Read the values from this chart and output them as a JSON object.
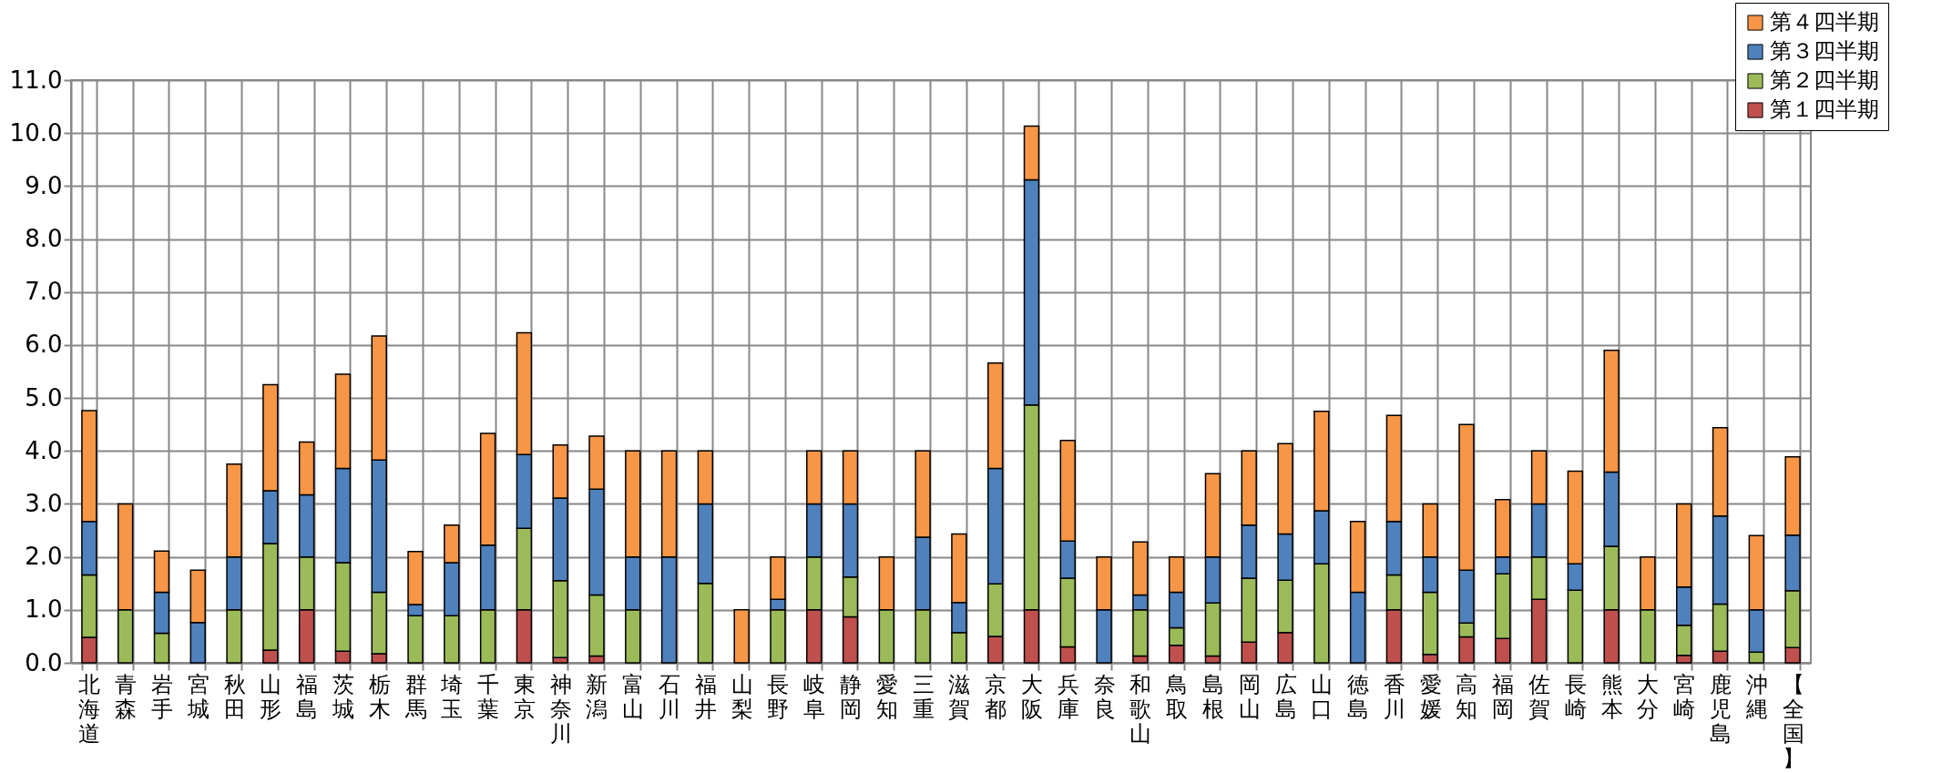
{
  "chart_data": {
    "type": "bar",
    "stacked": true,
    "grid": true,
    "legend": "top right",
    "categories": [
      "北海道",
      "青森",
      "岩手",
      "宮城",
      "秋田",
      "山形",
      "福島",
      "茨城",
      "栃木",
      "群馬",
      "埼玉",
      "千葉",
      "東京",
      "神奈川",
      "新潟",
      "富山",
      "石川",
      "福井",
      "山梨",
      "長野",
      "岐阜",
      "静岡",
      "愛知",
      "三重",
      "滋賀",
      "京都",
      "大阪",
      "兵庫",
      "奈良",
      "和歌山",
      "鳥取",
      "島根",
      "岡山",
      "広島",
      "山口",
      "徳島",
      "香川",
      "愛媛",
      "高知",
      "福岡",
      "佐賀",
      "長崎",
      "熊本",
      "大分",
      "宮崎",
      "鹿児島",
      "沖縄",
      "【全国】"
    ],
    "ylim": [
      0,
      11
    ],
    "yticks": [
      {
        "value": 0,
        "label": "0.0"
      },
      {
        "value": 1,
        "label": "1.0"
      },
      {
        "value": 2,
        "label": "2.0"
      },
      {
        "value": 3,
        "label": "3.0"
      },
      {
        "value": 4,
        "label": "4.0"
      },
      {
        "value": 5,
        "label": "5.0"
      },
      {
        "value": 6,
        "label": "6.0"
      },
      {
        "value": 7,
        "label": "7.0"
      },
      {
        "value": 8,
        "label": "8.0"
      },
      {
        "value": 9,
        "label": "9.0"
      },
      {
        "value": 10,
        "label": "10.0"
      },
      {
        "value": 11,
        "label": "11.0"
      }
    ],
    "series": [
      {
        "name": "第１四半期",
        "color": "#c0504d",
        "values": [
          0.48,
          0,
          0,
          0,
          0,
          0.24,
          1,
          0.22,
          0.17,
          0,
          0,
          0,
          1,
          0.1,
          0.13,
          0,
          0,
          0,
          0,
          0,
          1,
          0.87,
          0,
          0,
          0,
          0.5,
          1,
          0.3,
          0,
          0.13,
          0.33,
          0.13,
          0.39,
          0.57,
          0,
          0,
          1,
          0.16,
          0.49,
          0.46,
          1.2,
          0,
          1,
          0,
          0.14,
          0.22,
          0,
          0.29
        ]
      },
      {
        "name": "第２四半期",
        "color": "#9bbb59",
        "values": [
          1.18,
          1,
          0.56,
          0,
          1,
          2.01,
          1,
          1.67,
          1.16,
          0.89,
          0.89,
          1,
          1.54,
          1.45,
          1.15,
          1,
          0,
          1.5,
          0,
          1,
          1,
          0.75,
          1,
          1,
          0.57,
          0.99,
          3.87,
          1.3,
          0,
          0.87,
          0.33,
          1,
          1.21,
          0.99,
          1.87,
          0,
          0.66,
          1.17,
          0.26,
          1.22,
          0.8,
          1.37,
          1.2,
          1,
          0.57,
          0.89,
          0.2,
          1.07
        ]
      },
      {
        "name": "第３四半期",
        "color": "#4f81bd",
        "values": [
          1.01,
          0,
          0.77,
          0.76,
          1,
          1,
          1.17,
          1.78,
          2.5,
          0.21,
          1,
          1.22,
          1.39,
          1.56,
          2,
          1,
          2,
          1.5,
          0,
          0.2,
          1,
          1.38,
          0,
          1.37,
          0.57,
          2.18,
          4.25,
          0.7,
          1,
          0.28,
          0.67,
          0.87,
          1,
          0.87,
          1,
          1.33,
          1.01,
          0.67,
          1,
          0.32,
          1,
          0.5,
          1.4,
          0,
          0.72,
          1.66,
          0.8,
          1.05
        ]
      },
      {
        "name": "第４四半期",
        "color": "#f79646",
        "values": [
          2.09,
          2,
          0.78,
          0.99,
          1.75,
          2,
          1,
          1.78,
          2.34,
          1,
          0.71,
          2.11,
          2.3,
          1,
          1,
          2,
          2,
          1,
          1,
          0.8,
          1,
          1,
          1,
          1.63,
          1.29,
          1.99,
          1.01,
          1.9,
          1,
          1,
          0.67,
          1.57,
          1.4,
          1.71,
          1.88,
          1.34,
          2,
          1,
          2.75,
          1.08,
          1,
          1.75,
          2.3,
          1,
          1.57,
          1.67,
          1.4,
          1.48
        ]
      }
    ]
  }
}
